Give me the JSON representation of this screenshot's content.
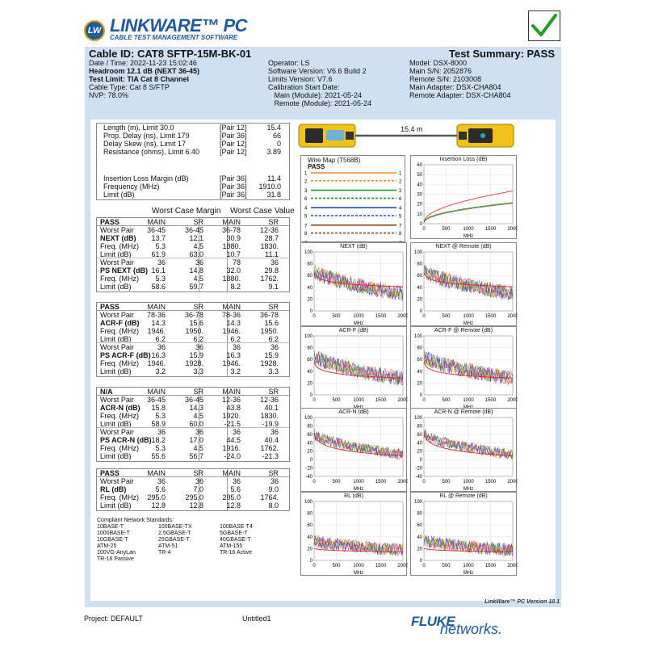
{
  "header": {
    "logo_badge": "LW",
    "logo_title": "LINKWARE™ PC",
    "logo_subtitle": "CABLE TEST MANAGEMENT SOFTWARE",
    "pass_check_icon": "check-icon"
  },
  "summary": {
    "cable_id": "Cable ID: CAT8 SFTP-15M-BK-01",
    "test_summary": "Test Summary: PASS",
    "left": [
      "Date / Time: 2022-11-23  15:02:46",
      "Headroom 12.1 dB (NEXT 36-45)",
      "Test Limit: TIA Cat 8 Channel",
      "Cable Type: Cat 8 S/FTP",
      "NVP: 78.0%"
    ],
    "middle": [
      "Operator: LS",
      "Software Version: V6.6 Build 2",
      "Limits Version: V7.6",
      "Calibration Start Date:",
      "   Main (Module): 2021-05-24",
      "   Remote (Module): 2021-05-24"
    ],
    "right": [
      "Model: DSX-8000",
      "Main S/N: 2052876",
      "Remote S/N: 2103008",
      "Main Adapter: DSX-CHA804",
      "Remote Adapter: DSX-CHA804"
    ]
  },
  "length_box": {
    "rows": [
      {
        "label": "Length (m), Limit 30.0",
        "pair": "[Pair 12]",
        "value": "15.4"
      },
      {
        "label": "Prop. Delay (ns), Limit 179",
        "pair": "[Pair 36]",
        "value": "66"
      },
      {
        "label": "Delay Skew (ns), Limit 17",
        "pair": "[Pair 12]",
        "value": "0"
      },
      {
        "label": "Resistance (ohms), Limit 6.40",
        "pair": "[Pair 12]",
        "value": "3.89"
      }
    ],
    "il_rows": [
      {
        "label": "Insertion Loss Margin (dB)",
        "pair": "[Pair 36]",
        "value": "11.4"
      },
      {
        "label": "Frequency (MHz)",
        "pair": "[Pair 36]",
        "value": "1910.0"
      },
      {
        "label": "Limit (dB)",
        "pair": "[Pair 36]",
        "value": "31.8"
      }
    ]
  },
  "cable_graphic": {
    "length": "15.4 m"
  },
  "worst_headers": {
    "margin": "Worst Case Margin",
    "value": "Worst Case Value"
  },
  "tables": [
    {
      "status": "PASS",
      "c1": "MAIN",
      "c2": "SR",
      "c3": "MAIN",
      "c4": "SR",
      "rows": [
        [
          "Worst Pair",
          "36-45",
          "36-45",
          "36-78",
          "12-36"
        ],
        [
          "NEXT (dB)",
          "13.7",
          "12.1",
          "30.9",
          "28.7"
        ],
        [
          "Freq. (MHz)",
          "5.3",
          "4.5",
          "1880.",
          "1830."
        ],
        [
          "Limit (dB)",
          "61.9",
          "63.0",
          "10.7",
          "11.1"
        ],
        [
          "Worst Pair",
          "36",
          "36",
          "78",
          "36"
        ],
        [
          "PS NEXT (dB)",
          "16.1",
          "14.8",
          "32.0",
          "29.8"
        ],
        [
          "Freq. (MHz)",
          "5.3",
          "4.5",
          "1880.",
          "1762."
        ],
        [
          "Limit (dB)",
          "58.6",
          "59.7",
          "8.2",
          "9.1"
        ]
      ]
    },
    {
      "status": "PASS",
      "c1": "MAIN",
      "c2": "SR",
      "c3": "MAIN",
      "c4": "SR",
      "rows": [
        [
          "Worst Pair",
          "78-36",
          "36-78",
          "78-36",
          "36-78"
        ],
        [
          "ACR-F (dB)",
          "14.3",
          "15.6",
          "14.3",
          "15.6"
        ],
        [
          "Freq. (MHz)",
          "1946.",
          "1950.",
          "1946.",
          "1950."
        ],
        [
          "Limit (dB)",
          "6.2",
          "6.2",
          "6.2",
          "6.2"
        ],
        [
          "Worst Pair",
          "36",
          "36",
          "36",
          "36"
        ],
        [
          "PS ACR-F (dB)",
          "16.3",
          "15.9",
          "16.3",
          "15.9"
        ],
        [
          "Freq. (MHz)",
          "1946.",
          "1928.",
          "1946.",
          "1928."
        ],
        [
          "Limit (dB)",
          "3.2",
          "3.3",
          "3.2",
          "3.3"
        ]
      ]
    },
    {
      "status": "N/A",
      "c1": "MAIN",
      "c2": "SR",
      "c3": "MAIN",
      "c4": "SR",
      "rows": [
        [
          "Worst Pair",
          "36-45",
          "36-45",
          "12-36",
          "12-36"
        ],
        [
          "ACR-N (dB)",
          "15.8",
          "14.3",
          "43.8",
          "40.1"
        ],
        [
          "Freq. (MHz)",
          "5.3",
          "4.5",
          "1920.",
          "1830."
        ],
        [
          "Limit (dB)",
          "58.9",
          "60.0",
          "-21.5",
          "-19.9"
        ],
        [
          "Worst Pair",
          "36",
          "36",
          "36",
          "36"
        ],
        [
          "PS ACR-N (dB)",
          "18.2",
          "17.0",
          "44.5",
          "40.4"
        ],
        [
          "Freq. (MHz)",
          "5.3",
          "4.5",
          "1916.",
          "1762."
        ],
        [
          "Limit (dB)",
          "55.6",
          "56.7",
          "-24.0",
          "-21.3"
        ]
      ]
    },
    {
      "status": "PASS",
      "c1": "MAIN",
      "c2": "SR",
      "c3": "MAIN",
      "c4": "SR",
      "rows": [
        [
          "Worst Pair",
          "36",
          "36",
          "36",
          "36"
        ],
        [
          "RL (dB)",
          "5.6",
          "7.0",
          "5.6",
          "9.0"
        ],
        [
          "Freq. (MHz)",
          "295.0",
          "295.0",
          "295.0",
          "1764."
        ],
        [
          "Limit (dB)",
          "12.8",
          "12.8",
          "12.8",
          "8.0"
        ]
      ]
    }
  ],
  "standards": {
    "title": "Compliant Network Standards:",
    "items": [
      [
        "10BASE-T",
        "100BASE-TX",
        "100BASE-T4"
      ],
      [
        "1000BASE-T",
        "2.5GBASE-T",
        "5GBASE-T"
      ],
      [
        "10GBASE-T",
        "25GBASE-T",
        "40GBASE-T"
      ],
      [
        "ATM-25",
        "ATM-51",
        "ATM-155"
      ],
      [
        "100VG-AnyLan",
        "TR-4",
        "TR-16 Active"
      ],
      [
        "TR-16 Passive",
        "",
        ""
      ]
    ]
  },
  "wiremap": {
    "title": "Wire Map (T568B)",
    "status": "PASS",
    "pins_left": [
      "1",
      "2",
      "3",
      "6",
      "4",
      "5",
      "7",
      "8",
      "S"
    ],
    "pins_right": [
      "1",
      "2",
      "3",
      "6",
      "4",
      "5",
      "7",
      "8",
      "S"
    ],
    "pair_colors": [
      "#f08a1e",
      "#f08a1e",
      "#1a9a2a",
      "#1a9a2a",
      "#1f4bd6",
      "#1f4bd6",
      "#8b4a1b",
      "#8b4a1b",
      "#666666"
    ]
  },
  "charts": [
    {
      "title": "Insertion Loss (dB)",
      "yticks": [
        "60",
        "50",
        "40",
        "30",
        "20",
        "10",
        "0"
      ],
      "xticks": [
        "0",
        "500",
        "1000",
        "1500",
        "2000"
      ],
      "xlabel": "MHz",
      "ylim": [
        0,
        60
      ],
      "kind": "il"
    },
    {
      "title": "NEXT (dB)",
      "yticks": [
        "100",
        "80",
        "60",
        "40",
        "20",
        "0"
      ],
      "xticks": [
        "0",
        "500",
        "1000",
        "1500",
        "2000"
      ],
      "xlabel": "MHz",
      "ylim": [
        0,
        100
      ],
      "kind": "next"
    },
    {
      "title": "NEXT @ Remote (dB)",
      "yticks": [
        "100",
        "80",
        "60",
        "40",
        "20",
        "0"
      ],
      "xticks": [
        "0",
        "500",
        "1000",
        "1500",
        "2000"
      ],
      "xlabel": "MHz",
      "ylim": [
        0,
        100
      ],
      "kind": "next"
    },
    {
      "title": "ACR-F (dB)",
      "yticks": [
        "100",
        "80",
        "60",
        "40",
        "20",
        "0"
      ],
      "xticks": [
        "0",
        "500",
        "1000",
        "1500",
        "2000"
      ],
      "xlabel": "MHz",
      "ylim": [
        0,
        100
      ],
      "kind": "acrf"
    },
    {
      "title": "ACR-F @ Remote (dB)",
      "yticks": [
        "100",
        "80",
        "60",
        "40",
        "20",
        "0"
      ],
      "xticks": [
        "0",
        "500",
        "1000",
        "1500",
        "2000"
      ],
      "xlabel": "MHz",
      "ylim": [
        0,
        100
      ],
      "kind": "acrf"
    },
    {
      "title": "ACR-N (dB)",
      "yticks": [
        "100",
        "80",
        "60",
        "40",
        "20",
        "0",
        "-20",
        "-40"
      ],
      "xticks": [
        "0",
        "500",
        "1000",
        "1500",
        "2000"
      ],
      "xlabel": "MHz",
      "ylim": [
        -40,
        100
      ],
      "kind": "acrn"
    },
    {
      "title": "ACR-N @ Remote (dB)",
      "yticks": [
        "100",
        "80",
        "60",
        "40",
        "20",
        "0",
        "-20",
        "-40"
      ],
      "xticks": [
        "0",
        "500",
        "1000",
        "1500",
        "2000"
      ],
      "xlabel": "MHz",
      "ylim": [
        -40,
        100
      ],
      "kind": "acrn"
    },
    {
      "title": "RL (dB)",
      "yticks": [
        "100",
        "80",
        "60",
        "40",
        "20",
        "0"
      ],
      "xticks": [
        "0",
        "500",
        "1000",
        "1500",
        "2000"
      ],
      "xlabel": "MHz",
      "ylim": [
        0,
        100
      ],
      "kind": "rl"
    },
    {
      "title": "RL @ Remote (dB)",
      "yticks": [
        "100",
        "80",
        "60",
        "40",
        "20",
        "0"
      ],
      "xticks": [
        "0",
        "500",
        "1000",
        "1500",
        "2000"
      ],
      "xlabel": "MHz",
      "ylim": [
        0,
        100
      ],
      "kind": "rl"
    }
  ],
  "footer": {
    "version": "LinkWare™ PC Version 10.1",
    "project": "Project: DEFAULT",
    "untitled": "Untitled1",
    "fluke": "FLUKE",
    "networks": "networks."
  }
}
